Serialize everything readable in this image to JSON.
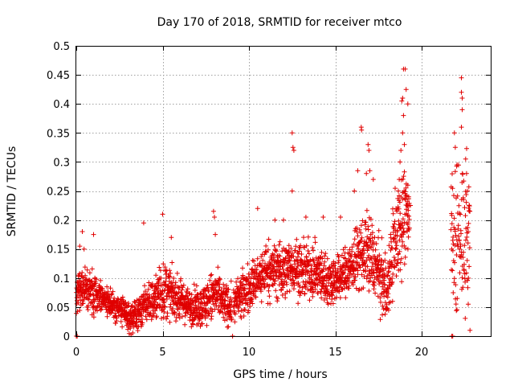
{
  "chart_data": {
    "type": "scatter",
    "title": "Day 170 of 2018, SRMTID for receiver mtco",
    "xlabel": "GPS time / hours",
    "ylabel": "SRMTID / TECUs",
    "xlim": [
      0,
      24
    ],
    "ylim": [
      0,
      0.5
    ],
    "x_ticks": [
      0,
      5,
      10,
      15,
      20
    ],
    "x_tick_labels": [
      "0",
      "5",
      "10",
      "15",
      "20"
    ],
    "y_ticks": [
      0,
      0.05,
      0.1,
      0.15,
      0.2,
      0.25,
      0.3,
      0.35,
      0.4,
      0.45,
      0.5
    ],
    "y_tick_labels": [
      "0",
      "0.05",
      "0.1",
      "0.15",
      "0.2",
      "0.25",
      "0.3",
      "0.35",
      "0.4",
      "0.45",
      "0.5"
    ],
    "grid": true,
    "marker": "plus",
    "color": "#e00000",
    "x_step_hours": 0.0083,
    "envelope": [
      {
        "x": 0.0,
        "lo": 0.02,
        "hi": 0.12
      },
      {
        "x": 0.5,
        "lo": 0.03,
        "hi": 0.13
      },
      {
        "x": 1.0,
        "lo": 0.03,
        "hi": 0.11
      },
      {
        "x": 1.5,
        "lo": 0.03,
        "hi": 0.1
      },
      {
        "x": 2.0,
        "lo": 0.02,
        "hi": 0.09
      },
      {
        "x": 2.5,
        "lo": 0.01,
        "hi": 0.08
      },
      {
        "x": 3.0,
        "lo": 0.0,
        "hi": 0.06
      },
      {
        "x": 3.5,
        "lo": 0.0,
        "hi": 0.07
      },
      {
        "x": 4.0,
        "lo": 0.01,
        "hi": 0.1
      },
      {
        "x": 4.5,
        "lo": 0.01,
        "hi": 0.11
      },
      {
        "x": 5.0,
        "lo": 0.01,
        "hi": 0.14
      },
      {
        "x": 5.5,
        "lo": 0.02,
        "hi": 0.12
      },
      {
        "x": 6.0,
        "lo": 0.02,
        "hi": 0.1
      },
      {
        "x": 6.5,
        "lo": 0.01,
        "hi": 0.09
      },
      {
        "x": 7.0,
        "lo": 0.01,
        "hi": 0.09
      },
      {
        "x": 7.5,
        "lo": 0.01,
        "hi": 0.1
      },
      {
        "x": 8.0,
        "lo": 0.02,
        "hi": 0.12
      },
      {
        "x": 8.5,
        "lo": 0.01,
        "hi": 0.1
      },
      {
        "x": 9.0,
        "lo": 0.01,
        "hi": 0.09
      },
      {
        "x": 9.5,
        "lo": 0.02,
        "hi": 0.11
      },
      {
        "x": 10.0,
        "lo": 0.03,
        "hi": 0.13
      },
      {
        "x": 10.5,
        "lo": 0.04,
        "hi": 0.15
      },
      {
        "x": 11.0,
        "lo": 0.05,
        "hi": 0.17
      },
      {
        "x": 11.5,
        "lo": 0.05,
        "hi": 0.17
      },
      {
        "x": 12.0,
        "lo": 0.05,
        "hi": 0.17
      },
      {
        "x": 12.5,
        "lo": 0.06,
        "hi": 0.18
      },
      {
        "x": 13.0,
        "lo": 0.05,
        "hi": 0.17
      },
      {
        "x": 13.5,
        "lo": 0.05,
        "hi": 0.17
      },
      {
        "x": 14.0,
        "lo": 0.05,
        "hi": 0.16
      },
      {
        "x": 14.5,
        "lo": 0.04,
        "hi": 0.15
      },
      {
        "x": 15.0,
        "lo": 0.04,
        "hi": 0.15
      },
      {
        "x": 15.5,
        "lo": 0.05,
        "hi": 0.16
      },
      {
        "x": 16.0,
        "lo": 0.06,
        "hi": 0.18
      },
      {
        "x": 16.5,
        "lo": 0.06,
        "hi": 0.22
      },
      {
        "x": 17.0,
        "lo": 0.06,
        "hi": 0.22
      },
      {
        "x": 17.5,
        "lo": 0.03,
        "hi": 0.18
      },
      {
        "x": 18.0,
        "lo": 0.01,
        "hi": 0.14
      },
      {
        "x": 18.5,
        "lo": 0.06,
        "hi": 0.28
      },
      {
        "x": 19.0,
        "lo": 0.1,
        "hi": 0.32
      },
      {
        "x": 19.3,
        "lo": 0.12,
        "hi": 0.25
      }
    ],
    "gaps": [
      [
        9.0,
        9.1
      ],
      [
        19.4,
        21.7
      ]
    ],
    "late_segment": {
      "x_range": [
        21.7,
        22.8
      ],
      "lo": 0.02,
      "hi": 0.33
    },
    "zero_points_x": [
      0.0,
      0.05,
      9.05,
      21.75,
      21.8
    ],
    "outliers": [
      {
        "x": 0.2,
        "y": 0.155
      },
      {
        "x": 0.35,
        "y": 0.18
      },
      {
        "x": 0.45,
        "y": 0.15
      },
      {
        "x": 1.0,
        "y": 0.175
      },
      {
        "x": 3.9,
        "y": 0.195
      },
      {
        "x": 5.0,
        "y": 0.21
      },
      {
        "x": 5.5,
        "y": 0.17
      },
      {
        "x": 7.95,
        "y": 0.215
      },
      {
        "x": 8.0,
        "y": 0.205
      },
      {
        "x": 8.05,
        "y": 0.175
      },
      {
        "x": 10.5,
        "y": 0.22
      },
      {
        "x": 11.5,
        "y": 0.2
      },
      {
        "x": 12.0,
        "y": 0.2
      },
      {
        "x": 12.5,
        "y": 0.35
      },
      {
        "x": 12.55,
        "y": 0.325
      },
      {
        "x": 12.6,
        "y": 0.32
      },
      {
        "x": 12.5,
        "y": 0.25
      },
      {
        "x": 13.3,
        "y": 0.205
      },
      {
        "x": 14.3,
        "y": 0.205
      },
      {
        "x": 15.3,
        "y": 0.205
      },
      {
        "x": 16.1,
        "y": 0.25
      },
      {
        "x": 16.5,
        "y": 0.36
      },
      {
        "x": 16.52,
        "y": 0.355
      },
      {
        "x": 16.3,
        "y": 0.285
      },
      {
        "x": 16.9,
        "y": 0.33
      },
      {
        "x": 16.95,
        "y": 0.32
      },
      {
        "x": 17.0,
        "y": 0.285
      },
      {
        "x": 16.8,
        "y": 0.28
      },
      {
        "x": 17.2,
        "y": 0.27
      },
      {
        "x": 18.65,
        "y": 0.25
      },
      {
        "x": 18.7,
        "y": 0.27
      },
      {
        "x": 18.75,
        "y": 0.3
      },
      {
        "x": 18.8,
        "y": 0.32
      },
      {
        "x": 18.9,
        "y": 0.35
      },
      {
        "x": 18.85,
        "y": 0.405
      },
      {
        "x": 18.9,
        "y": 0.41
      },
      {
        "x": 18.95,
        "y": 0.38
      },
      {
        "x": 18.95,
        "y": 0.46
      },
      {
        "x": 19.05,
        "y": 0.46
      },
      {
        "x": 19.1,
        "y": 0.425
      },
      {
        "x": 19.2,
        "y": 0.4
      },
      {
        "x": 19.0,
        "y": 0.33
      },
      {
        "x": 19.2,
        "y": 0.26
      },
      {
        "x": 19.25,
        "y": 0.24
      },
      {
        "x": 19.35,
        "y": 0.225
      },
      {
        "x": 21.9,
        "y": 0.35
      },
      {
        "x": 21.95,
        "y": 0.325
      },
      {
        "x": 22.05,
        "y": 0.295
      },
      {
        "x": 22.3,
        "y": 0.445
      },
      {
        "x": 22.3,
        "y": 0.42
      },
      {
        "x": 22.35,
        "y": 0.41
      },
      {
        "x": 22.35,
        "y": 0.39
      },
      {
        "x": 22.3,
        "y": 0.36
      },
      {
        "x": 22.55,
        "y": 0.305
      },
      {
        "x": 22.6,
        "y": 0.28
      },
      {
        "x": 22.65,
        "y": 0.25
      },
      {
        "x": 22.7,
        "y": 0.18
      },
      {
        "x": 22.75,
        "y": 0.12
      },
      {
        "x": 22.8,
        "y": 0.01
      }
    ]
  }
}
